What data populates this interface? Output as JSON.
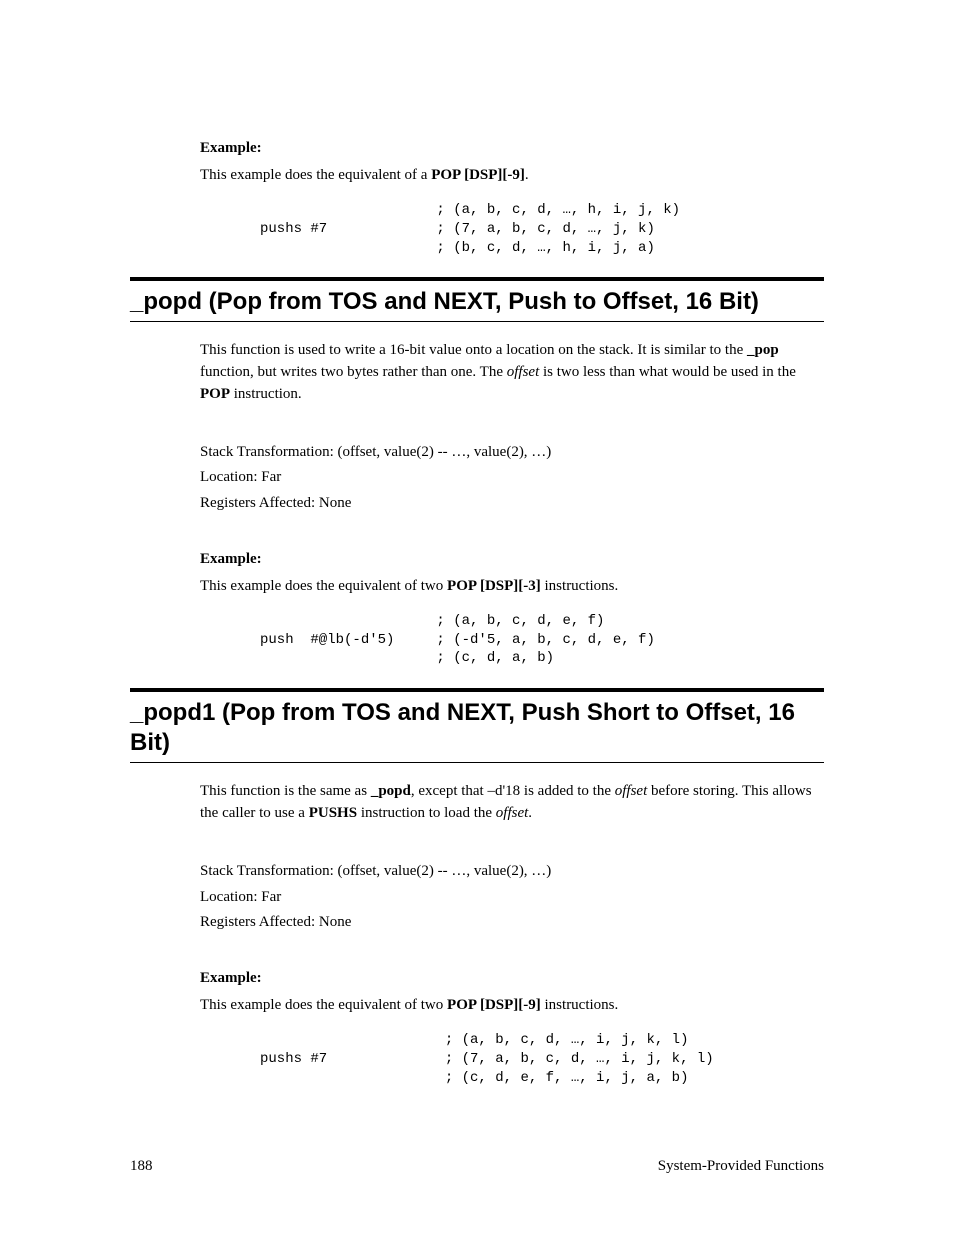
{
  "sec0": {
    "example_label": "Example:",
    "example_intro_pre": "This example does the equivalent of a ",
    "example_intro_bold": "POP [DSP][-9]",
    "example_intro_post": ".",
    "code": "                     ; (a, b, c, d, …, h, i, j, k)\npushs #7             ; (7, a, b, c, d, …, j, k)\n                     ; (b, c, d, …, h, i, j, a)"
  },
  "sec1": {
    "heading": "_popd (Pop from TOS and NEXT, Push to Offset, 16 Bit)",
    "p1_a": "This function is used to write a 16-bit value onto a location on the stack.  It is similar to the ",
    "p1_b": "_pop",
    "p1_c": " function, but writes two bytes rather than one.  The ",
    "p1_d": "offset",
    "p1_e": " is two less than what would be used in the ",
    "p1_f": "POP",
    "p1_g": " instruction.",
    "stack": "Stack Transformation:  (offset, value(2) -- …, value(2), …)",
    "loc": "Location:  Far",
    "regs": "Registers Affected:  None",
    "example_label": "Example:",
    "example_intro_pre": "This example does the equivalent of two ",
    "example_intro_bold": "POP [DSP][-3]",
    "example_intro_post": " instructions.",
    "code": "                     ; (a, b, c, d, e, f)\npush  #@lb(-d'5)     ; (-d'5, a, b, c, d, e, f)\n                     ; (c, d, a, b)"
  },
  "sec2": {
    "heading": "_popd1 (Pop from TOS and NEXT, Push Short to Offset, 16 Bit)",
    "p1_a": "This function is the same as ",
    "p1_b": "_popd",
    "p1_c": ", except that –d'18 is added to the ",
    "p1_d": "offset",
    "p1_e": " before storing.  This allows the caller to use a ",
    "p1_f": "PUSHS",
    "p1_g": " instruction to load the ",
    "p1_h": "offset",
    "p1_i": ".",
    "stack": "Stack Transformation:  (offset, value(2) -- …, value(2), …)",
    "loc": "Location:  Far",
    "regs": "Registers Affected:  None",
    "example_label": "Example:",
    "example_intro_pre": "This example does the equivalent of two ",
    "example_intro_bold": "POP [DSP][-9]",
    "example_intro_post": " instructions.",
    "code": "                      ; (a, b, c, d, …, i, j, k, l)\npushs #7              ; (7, a, b, c, d, …, i, j, k, l)\n                      ; (c, d, e, f, …, i, j, a, b)"
  },
  "footer": {
    "page_no": "188",
    "title": "System-Provided Functions"
  }
}
